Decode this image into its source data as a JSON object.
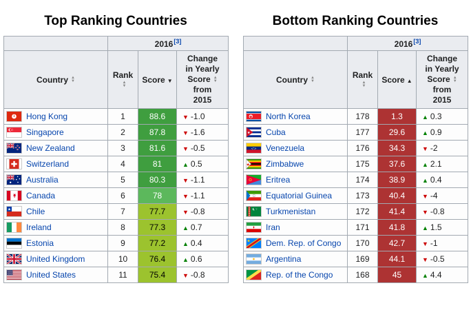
{
  "icons": {
    "sort_ascending": "▲",
    "sort_descending": "▼",
    "sort_both_up": "▲",
    "sort_both_down": "▼",
    "trend_up": "▲",
    "trend_down": "▼"
  },
  "colors": {
    "link": "#0645ad",
    "border": "#a2a9b1",
    "header_bg": "#eaecf0",
    "trend_up": "#008000",
    "trend_down": "#cc0000",
    "score_free": "#3f9e3f",
    "score_mostly_free": "#5cb85c",
    "score_moderately_free": "#9cc32e",
    "score_repressed": "#ad3333"
  },
  "tables": [
    {
      "title": "Top Ranking Countries",
      "year": "2016",
      "ref": "[3]",
      "columns": {
        "country": "Country",
        "rank": "Rank",
        "score": "Score",
        "change_line1": "Change",
        "change_line2": "in Yearly",
        "change_line3": "Score",
        "change_line4": "from",
        "change_line5": "2015"
      },
      "score_sort": "descending",
      "rows": [
        {
          "country": "Hong Kong",
          "flag": "hk",
          "rank": "1",
          "score": "88.6",
          "score_bg": "#3f9e3f",
          "score_fg": "#ffffff",
          "change_dir": "down",
          "change": "-1.0"
        },
        {
          "country": "Singapore",
          "flag": "sg",
          "rank": "2",
          "score": "87.8",
          "score_bg": "#3f9e3f",
          "score_fg": "#ffffff",
          "change_dir": "down",
          "change": "-1.6"
        },
        {
          "country": "New Zealand",
          "flag": "nz",
          "rank": "3",
          "score": "81.6",
          "score_bg": "#3f9e3f",
          "score_fg": "#ffffff",
          "change_dir": "down",
          "change": "-0.5"
        },
        {
          "country": "Switzerland",
          "flag": "ch",
          "rank": "4",
          "score": "81",
          "score_bg": "#3f9e3f",
          "score_fg": "#ffffff",
          "change_dir": "up",
          "change": "0.5"
        },
        {
          "country": "Australia",
          "flag": "au",
          "rank": "5",
          "score": "80.3",
          "score_bg": "#3f9e3f",
          "score_fg": "#ffffff",
          "change_dir": "down",
          "change": "-1.1"
        },
        {
          "country": "Canada",
          "flag": "ca",
          "rank": "6",
          "score": "78",
          "score_bg": "#5cb85c",
          "score_fg": "#ffffff",
          "change_dir": "down",
          "change": "-1.1"
        },
        {
          "country": "Chile",
          "flag": "cl",
          "rank": "7",
          "score": "77.7",
          "score_bg": "#9cc32e",
          "score_fg": "#000000",
          "change_dir": "down",
          "change": "-0.8"
        },
        {
          "country": "Ireland",
          "flag": "ie",
          "rank": "8",
          "score": "77.3",
          "score_bg": "#9cc32e",
          "score_fg": "#000000",
          "change_dir": "up",
          "change": "0.7"
        },
        {
          "country": "Estonia",
          "flag": "ee",
          "rank": "9",
          "score": "77.2",
          "score_bg": "#9cc32e",
          "score_fg": "#000000",
          "change_dir": "up",
          "change": "0.4"
        },
        {
          "country": "United Kingdom",
          "flag": "gb",
          "rank": "10",
          "score": "76.4",
          "score_bg": "#9cc32e",
          "score_fg": "#000000",
          "change_dir": "up",
          "change": "0.6"
        },
        {
          "country": "United States",
          "flag": "us",
          "rank": "11",
          "score": "75.4",
          "score_bg": "#9cc32e",
          "score_fg": "#000000",
          "change_dir": "down",
          "change": "-0.8"
        }
      ]
    },
    {
      "title": "Bottom Ranking Countries",
      "year": "2016",
      "ref": "[3]",
      "columns": {
        "country": "Country",
        "rank": "Rank",
        "score": "Score",
        "change_line1": "Change",
        "change_line2": "in Yearly",
        "change_line3": "Score",
        "change_line4": "from",
        "change_line5": "2015"
      },
      "score_sort": "ascending",
      "rows": [
        {
          "country": "North Korea",
          "flag": "kp",
          "rank": "178",
          "score": "1.3",
          "score_bg": "#ad3333",
          "score_fg": "#ffffff",
          "change_dir": "up",
          "change": "0.3"
        },
        {
          "country": "Cuba",
          "flag": "cu",
          "rank": "177",
          "score": "29.6",
          "score_bg": "#ad3333",
          "score_fg": "#ffffff",
          "change_dir": "up",
          "change": "0.9"
        },
        {
          "country": "Venezuela",
          "flag": "ve",
          "rank": "176",
          "score": "34.3",
          "score_bg": "#ad3333",
          "score_fg": "#ffffff",
          "change_dir": "down",
          "change": "-2"
        },
        {
          "country": "Zimbabwe",
          "flag": "zw",
          "rank": "175",
          "score": "37.6",
          "score_bg": "#ad3333",
          "score_fg": "#ffffff",
          "change_dir": "up",
          "change": "2.1"
        },
        {
          "country": "Eritrea",
          "flag": "er",
          "rank": "174",
          "score": "38.9",
          "score_bg": "#ad3333",
          "score_fg": "#ffffff",
          "change_dir": "up",
          "change": "0.4"
        },
        {
          "country": "Equatorial Guinea",
          "flag": "gq",
          "rank": "173",
          "score": "40.4",
          "score_bg": "#ad3333",
          "score_fg": "#ffffff",
          "change_dir": "down",
          "change": "-4"
        },
        {
          "country": "Turkmenistan",
          "flag": "tm",
          "rank": "172",
          "score": "41.4",
          "score_bg": "#ad3333",
          "score_fg": "#ffffff",
          "change_dir": "down",
          "change": "-0.8"
        },
        {
          "country": "Iran",
          "flag": "ir",
          "rank": "171",
          "score": "41.8",
          "score_bg": "#ad3333",
          "score_fg": "#ffffff",
          "change_dir": "up",
          "change": "1.5"
        },
        {
          "country": "Dem. Rep. of Congo",
          "flag": "cd",
          "rank": "170",
          "score": "42.7",
          "score_bg": "#ad3333",
          "score_fg": "#ffffff",
          "change_dir": "down",
          "change": "-1"
        },
        {
          "country": "Argentina",
          "flag": "ar",
          "rank": "169",
          "score": "44.1",
          "score_bg": "#ad3333",
          "score_fg": "#ffffff",
          "change_dir": "down",
          "change": "-0.5"
        },
        {
          "country": "Rep. of the Congo",
          "flag": "cg",
          "rank": "168",
          "score": "45",
          "score_bg": "#ad3333",
          "score_fg": "#ffffff",
          "change_dir": "up",
          "change": "4.4"
        }
      ]
    }
  ]
}
